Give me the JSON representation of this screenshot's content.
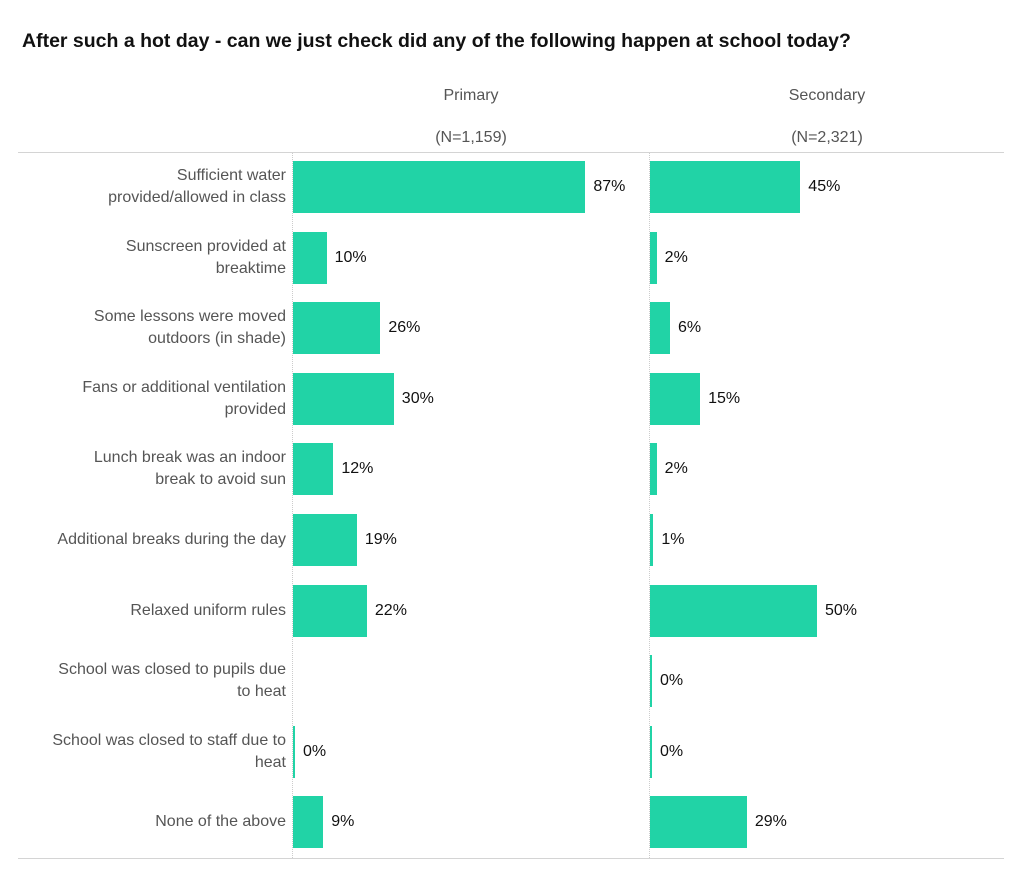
{
  "chart_data": {
    "type": "bar",
    "title": "After such a hot day - can we just check did any of the following happen at school today?",
    "categories": [
      "Sufficient water\nprovided/allowed in class",
      "Sunscreen provided at\nbreaktime",
      "Some lessons were moved\noutdoors (in shade)",
      "Fans or additional ventilation\nprovided",
      "Lunch break was an indoor\nbreak to avoid sun",
      "Additional breaks during the day",
      "Relaxed uniform rules",
      "School was closed to pupils due\nto heat",
      "School was closed to staff due to\nheat",
      "None of the above"
    ],
    "series": [
      {
        "name": "Primary",
        "n_label": "(N=1,159)",
        "values": [
          87,
          10,
          26,
          30,
          12,
          19,
          22,
          null,
          0,
          9
        ],
        "labels": [
          "87%",
          "10%",
          "26%",
          "30%",
          "12%",
          "19%",
          "22%",
          null,
          "0%",
          "9%"
        ]
      },
      {
        "name": "Secondary",
        "n_label": "(N=2,321)",
        "values": [
          45,
          2,
          6,
          15,
          2,
          1,
          50,
          0,
          0,
          29
        ],
        "labels": [
          "45%",
          "2%",
          "6%",
          "15%",
          "2%",
          "1%",
          "50%",
          "0%",
          "0%",
          "29%"
        ]
      }
    ],
    "unit": "%",
    "xlim": [
      0,
      100
    ],
    "color": "#21d3a6",
    "grid": false
  }
}
